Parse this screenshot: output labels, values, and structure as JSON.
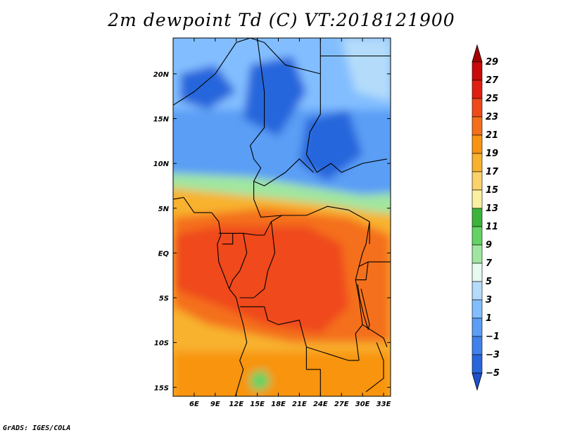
{
  "title": "2m dewpoint Td (C) VT:2018121900",
  "credit": "GrADS: IGES/COLA",
  "map": {
    "lon_range": [
      3,
      34
    ],
    "lat_range": [
      -16,
      24
    ],
    "lon_ticks": [
      {
        "v": 6,
        "label": "6E"
      },
      {
        "v": 9,
        "label": "9E"
      },
      {
        "v": 12,
        "label": "12E"
      },
      {
        "v": 15,
        "label": "15E"
      },
      {
        "v": 18,
        "label": "18E"
      },
      {
        "v": 21,
        "label": "21E"
      },
      {
        "v": 24,
        "label": "24E"
      },
      {
        "v": 27,
        "label": "27E"
      },
      {
        "v": 30,
        "label": "30E"
      },
      {
        "v": 33,
        "label": "33E"
      }
    ],
    "lat_ticks": [
      {
        "v": 20,
        "label": "20N"
      },
      {
        "v": 15,
        "label": "15N"
      },
      {
        "v": 10,
        "label": "10N"
      },
      {
        "v": 5,
        "label": "5N"
      },
      {
        "v": 0,
        "label": "EQ"
      },
      {
        "v": -5,
        "label": "5S"
      },
      {
        "v": -10,
        "label": "10S"
      },
      {
        "v": -15,
        "label": "15S"
      }
    ]
  },
  "colorbar": {
    "levels": [
      "29",
      "27",
      "25",
      "23",
      "21",
      "19",
      "17",
      "15",
      "13",
      "11",
      "9",
      "7",
      "5",
      "3",
      "1",
      "−1",
      "−3",
      "−5"
    ],
    "colors": [
      "#a50000",
      "#c80a0a",
      "#e11e12",
      "#ef4a1a",
      "#f46f1a",
      "#f89410",
      "#f8b22e",
      "#fad16a",
      "#faf0a0",
      "#3cb43c",
      "#64d264",
      "#a0e6a0",
      "#e6faf0",
      "#b4dcfa",
      "#82beff",
      "#5a9ef5",
      "#4082eb",
      "#2866dc",
      "#1e50c8"
    ]
  }
}
